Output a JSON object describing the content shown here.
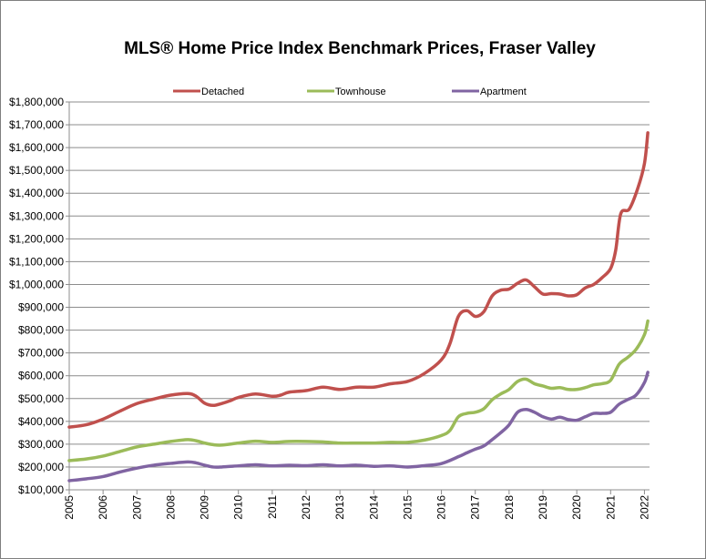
{
  "chart_data": {
    "type": "line",
    "title": "MLS® Home Price Index Benchmark Prices, Fraser Valley",
    "xlabel": "",
    "ylabel": "",
    "xlim": [
      2005.0,
      2022.15
    ],
    "ylim": [
      100000,
      1800000
    ],
    "y_ticks": [
      {
        "value": 100000,
        "label": "$100,000"
      },
      {
        "value": 200000,
        "label": "$200,000"
      },
      {
        "value": 300000,
        "label": "$300,000"
      },
      {
        "value": 400000,
        "label": "$400,000"
      },
      {
        "value": 500000,
        "label": "$500,000"
      },
      {
        "value": 600000,
        "label": "$600,000"
      },
      {
        "value": 700000,
        "label": "$700,000"
      },
      {
        "value": 800000,
        "label": "$800,000"
      },
      {
        "value": 900000,
        "label": "$900,000"
      },
      {
        "value": 1000000,
        "label": "$1,000,000"
      },
      {
        "value": 1100000,
        "label": "$1,100,000"
      },
      {
        "value": 1200000,
        "label": "$1,200,000"
      },
      {
        "value": 1300000,
        "label": "$1,300,000"
      },
      {
        "value": 1400000,
        "label": "$1,400,000"
      },
      {
        "value": 1500000,
        "label": "$1,500,000"
      },
      {
        "value": 1600000,
        "label": "$1,600,000"
      },
      {
        "value": 1700000,
        "label": "$1,700,000"
      },
      {
        "value": 1800000,
        "label": "$1,800,000"
      }
    ],
    "x_ticks": [
      {
        "value": 2005,
        "label": "2005"
      },
      {
        "value": 2006,
        "label": "2006"
      },
      {
        "value": 2007,
        "label": "2007"
      },
      {
        "value": 2008,
        "label": "2008"
      },
      {
        "value": 2009,
        "label": "2009"
      },
      {
        "value": 2010,
        "label": "2010"
      },
      {
        "value": 2011,
        "label": "2011"
      },
      {
        "value": 2012,
        "label": "2012"
      },
      {
        "value": 2013,
        "label": "2013"
      },
      {
        "value": 2014,
        "label": "2014"
      },
      {
        "value": 2015,
        "label": "2015"
      },
      {
        "value": 2016,
        "label": "2016"
      },
      {
        "value": 2017,
        "label": "2017"
      },
      {
        "value": 2018,
        "label": "2018"
      },
      {
        "value": 2019,
        "label": "2019"
      },
      {
        "value": 2020,
        "label": "2020"
      },
      {
        "value": 2021,
        "label": "2021"
      },
      {
        "value": 2022,
        "label": "2022"
      }
    ],
    "grid": "horizontal",
    "legend_position": "top",
    "series": [
      {
        "name": "Detached",
        "color": "#c0504d",
        "points": [
          [
            2005.0,
            375000
          ],
          [
            2005.5,
            385000
          ],
          [
            2006.0,
            410000
          ],
          [
            2006.5,
            445000
          ],
          [
            2007.0,
            478000
          ],
          [
            2007.5,
            498000
          ],
          [
            2008.0,
            515000
          ],
          [
            2008.5,
            522000
          ],
          [
            2008.75,
            510000
          ],
          [
            2009.0,
            480000
          ],
          [
            2009.25,
            470000
          ],
          [
            2009.5,
            478000
          ],
          [
            2009.75,
            490000
          ],
          [
            2010.0,
            505000
          ],
          [
            2010.5,
            520000
          ],
          [
            2011.0,
            510000
          ],
          [
            2011.25,
            515000
          ],
          [
            2011.5,
            528000
          ],
          [
            2012.0,
            535000
          ],
          [
            2012.5,
            550000
          ],
          [
            2013.0,
            540000
          ],
          [
            2013.5,
            550000
          ],
          [
            2014.0,
            550000
          ],
          [
            2014.5,
            565000
          ],
          [
            2015.0,
            575000
          ],
          [
            2015.5,
            610000
          ],
          [
            2016.0,
            670000
          ],
          [
            2016.25,
            740000
          ],
          [
            2016.5,
            860000
          ],
          [
            2016.75,
            885000
          ],
          [
            2017.0,
            860000
          ],
          [
            2017.25,
            880000
          ],
          [
            2017.5,
            950000
          ],
          [
            2017.75,
            975000
          ],
          [
            2018.0,
            980000
          ],
          [
            2018.25,
            1005000
          ],
          [
            2018.5,
            1020000
          ],
          [
            2018.75,
            990000
          ],
          [
            2019.0,
            958000
          ],
          [
            2019.25,
            960000
          ],
          [
            2019.5,
            958000
          ],
          [
            2019.75,
            950000
          ],
          [
            2020.0,
            955000
          ],
          [
            2020.25,
            985000
          ],
          [
            2020.5,
            1000000
          ],
          [
            2020.75,
            1030000
          ],
          [
            2021.0,
            1070000
          ],
          [
            2021.15,
            1150000
          ],
          [
            2021.3,
            1310000
          ],
          [
            2021.55,
            1330000
          ],
          [
            2021.8,
            1420000
          ],
          [
            2022.0,
            1530000
          ],
          [
            2022.1,
            1665000
          ]
        ]
      },
      {
        "name": "Townhouse",
        "color": "#9bbb59",
        "points": [
          [
            2005.0,
            228000
          ],
          [
            2005.5,
            235000
          ],
          [
            2006.0,
            248000
          ],
          [
            2006.5,
            268000
          ],
          [
            2007.0,
            288000
          ],
          [
            2007.5,
            300000
          ],
          [
            2008.0,
            312000
          ],
          [
            2008.5,
            320000
          ],
          [
            2008.75,
            315000
          ],
          [
            2009.0,
            305000
          ],
          [
            2009.25,
            298000
          ],
          [
            2009.5,
            296000
          ],
          [
            2010.0,
            305000
          ],
          [
            2010.5,
            313000
          ],
          [
            2011.0,
            308000
          ],
          [
            2011.5,
            312000
          ],
          [
            2012.0,
            312000
          ],
          [
            2012.5,
            310000
          ],
          [
            2013.0,
            305000
          ],
          [
            2013.5,
            305000
          ],
          [
            2014.0,
            305000
          ],
          [
            2014.5,
            308000
          ],
          [
            2015.0,
            308000
          ],
          [
            2015.5,
            318000
          ],
          [
            2016.0,
            338000
          ],
          [
            2016.25,
            360000
          ],
          [
            2016.5,
            420000
          ],
          [
            2016.75,
            435000
          ],
          [
            2017.0,
            440000
          ],
          [
            2017.25,
            455000
          ],
          [
            2017.5,
            495000
          ],
          [
            2017.75,
            520000
          ],
          [
            2018.0,
            540000
          ],
          [
            2018.25,
            575000
          ],
          [
            2018.5,
            585000
          ],
          [
            2018.75,
            565000
          ],
          [
            2019.0,
            555000
          ],
          [
            2019.25,
            545000
          ],
          [
            2019.5,
            548000
          ],
          [
            2019.75,
            540000
          ],
          [
            2020.0,
            540000
          ],
          [
            2020.25,
            548000
          ],
          [
            2020.5,
            560000
          ],
          [
            2020.75,
            565000
          ],
          [
            2021.0,
            580000
          ],
          [
            2021.25,
            650000
          ],
          [
            2021.5,
            680000
          ],
          [
            2021.75,
            715000
          ],
          [
            2022.0,
            780000
          ],
          [
            2022.1,
            840000
          ]
        ]
      },
      {
        "name": "Apartment",
        "color": "#8064a2",
        "points": [
          [
            2005.0,
            140000
          ],
          [
            2005.5,
            148000
          ],
          [
            2006.0,
            158000
          ],
          [
            2006.5,
            178000
          ],
          [
            2007.0,
            195000
          ],
          [
            2007.5,
            208000
          ],
          [
            2008.0,
            216000
          ],
          [
            2008.5,
            222000
          ],
          [
            2008.75,
            218000
          ],
          [
            2009.0,
            208000
          ],
          [
            2009.25,
            200000
          ],
          [
            2009.5,
            200000
          ],
          [
            2010.0,
            205000
          ],
          [
            2010.5,
            210000
          ],
          [
            2011.0,
            205000
          ],
          [
            2011.5,
            208000
          ],
          [
            2012.0,
            206000
          ],
          [
            2012.5,
            210000
          ],
          [
            2013.0,
            205000
          ],
          [
            2013.5,
            208000
          ],
          [
            2014.0,
            203000
          ],
          [
            2014.5,
            205000
          ],
          [
            2015.0,
            200000
          ],
          [
            2015.5,
            206000
          ],
          [
            2016.0,
            215000
          ],
          [
            2016.5,
            245000
          ],
          [
            2016.75,
            262000
          ],
          [
            2017.0,
            278000
          ],
          [
            2017.25,
            292000
          ],
          [
            2017.5,
            320000
          ],
          [
            2017.75,
            350000
          ],
          [
            2018.0,
            385000
          ],
          [
            2018.25,
            440000
          ],
          [
            2018.5,
            452000
          ],
          [
            2018.75,
            440000
          ],
          [
            2019.0,
            420000
          ],
          [
            2019.25,
            410000
          ],
          [
            2019.5,
            418000
          ],
          [
            2019.75,
            408000
          ],
          [
            2020.0,
            405000
          ],
          [
            2020.25,
            420000
          ],
          [
            2020.5,
            435000
          ],
          [
            2020.75,
            435000
          ],
          [
            2021.0,
            440000
          ],
          [
            2021.25,
            475000
          ],
          [
            2021.5,
            495000
          ],
          [
            2021.75,
            515000
          ],
          [
            2022.0,
            570000
          ],
          [
            2022.1,
            615000
          ]
        ]
      }
    ]
  }
}
